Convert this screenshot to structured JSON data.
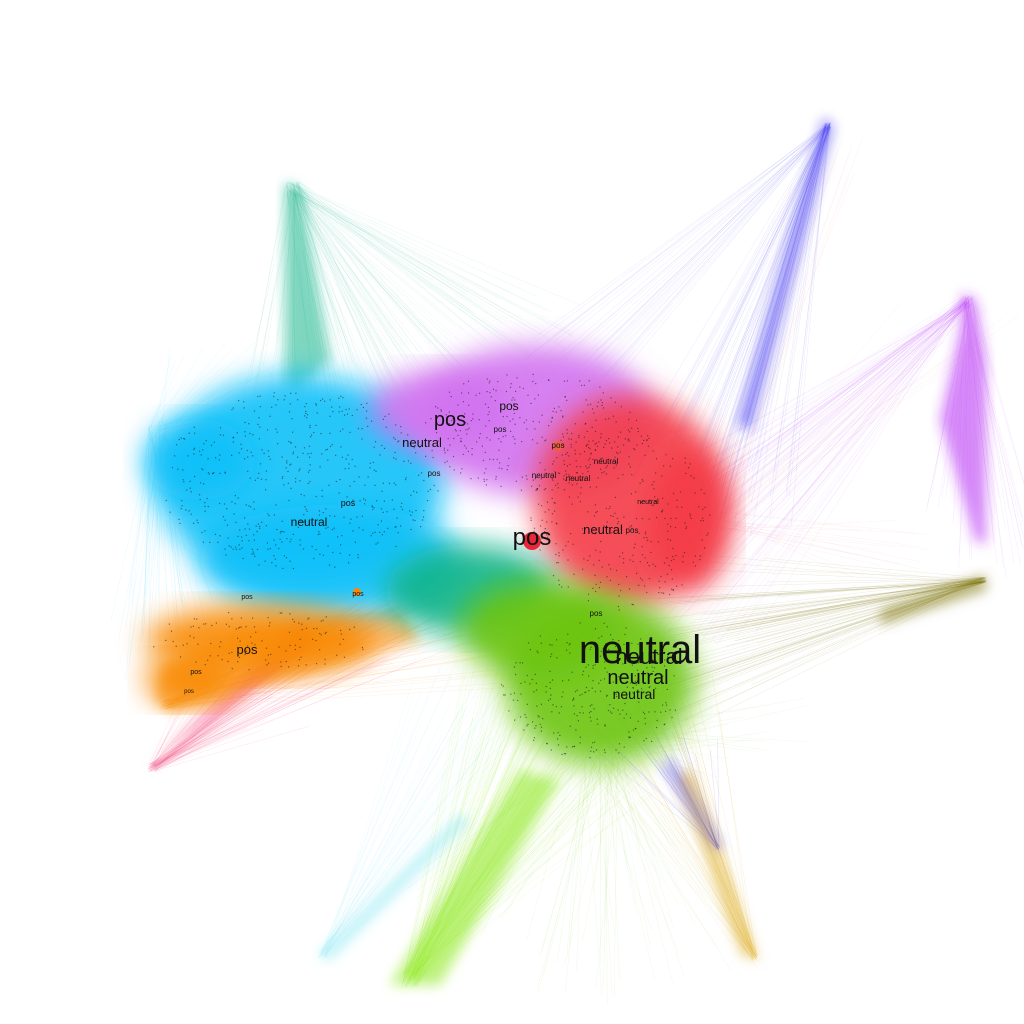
{
  "clusters": [
    {
      "id": "sky-blue",
      "color": "#10c0f8"
    },
    {
      "id": "violet",
      "color": "#d272f0"
    },
    {
      "id": "red",
      "color": "#f43c46"
    },
    {
      "id": "green",
      "color": "#6cc408"
    },
    {
      "id": "teal-green",
      "color": "#12b48a"
    },
    {
      "id": "orange",
      "color": "#f88806"
    },
    {
      "id": "pink",
      "color": "#f4366e"
    },
    {
      "id": "blue",
      "color": "#2c22ee"
    },
    {
      "id": "purple",
      "color": "#b42cf2"
    },
    {
      "id": "olive",
      "color": "#7a6e0a"
    },
    {
      "id": "lime",
      "color": "#88e810"
    },
    {
      "id": "cyan",
      "color": "#7ee6f2"
    },
    {
      "id": "gold",
      "color": "#d8a008"
    }
  ],
  "labels": [
    {
      "text": "pos"
    },
    {
      "text": "pos"
    },
    {
      "text": "neutral"
    },
    {
      "text": "pos"
    },
    {
      "text": "pos"
    },
    {
      "text": "neutral"
    },
    {
      "text": "pos"
    },
    {
      "text": "pos"
    },
    {
      "text": "neutral"
    },
    {
      "text": "neutral"
    },
    {
      "text": "pos"
    },
    {
      "text": "neutral"
    },
    {
      "text": "neutral"
    },
    {
      "text": "neutral"
    },
    {
      "text": "neutral"
    },
    {
      "text": "pos"
    },
    {
      "text": "pos"
    },
    {
      "text": "pos"
    },
    {
      "text": "neutral"
    },
    {
      "text": "neutral"
    },
    {
      "text": "pos"
    },
    {
      "text": "neutral"
    },
    {
      "text": "pos"
    },
    {
      "text": "pos"
    },
    {
      "text": "pos"
    }
  ]
}
